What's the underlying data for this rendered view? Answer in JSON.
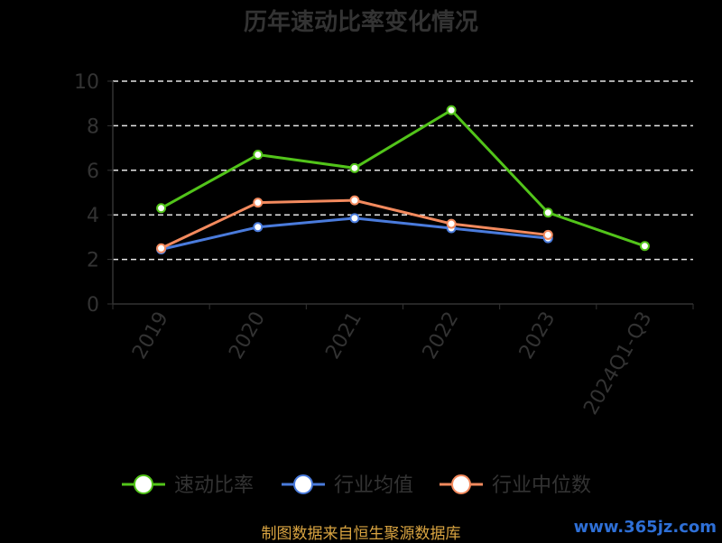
{
  "colors": {
    "background": "#000000",
    "text": "#333333",
    "grid": "#e6e6e6",
    "axis": "#333333",
    "source": "#d9a441",
    "watermark": "#2e6fd6"
  },
  "source_text": "制图数据来自恒生聚源数据库",
  "watermark": "www.365jz.com",
  "chart_data": {
    "type": "line",
    "title": "历年速动比率变化情况",
    "categories": [
      "2019",
      "2020",
      "2021",
      "2022",
      "2023",
      "2024Q1-Q3"
    ],
    "ylim": [
      0,
      10
    ],
    "yticks": [
      0,
      2,
      4,
      6,
      8,
      10
    ],
    "grid": "horizontal dashed",
    "legend_position": "bottom",
    "series": [
      {
        "name": "速动比率",
        "color": "#52c41a",
        "values": [
          4.3,
          6.7,
          6.1,
          8.7,
          4.1,
          2.6
        ]
      },
      {
        "name": "行业均值",
        "color": "#4a7bdc",
        "values": [
          2.45,
          3.45,
          3.85,
          3.4,
          2.95,
          null
        ]
      },
      {
        "name": "行业中位数",
        "color": "#f38a5e",
        "values": [
          2.5,
          4.55,
          4.65,
          3.6,
          3.1,
          null
        ]
      }
    ]
  }
}
